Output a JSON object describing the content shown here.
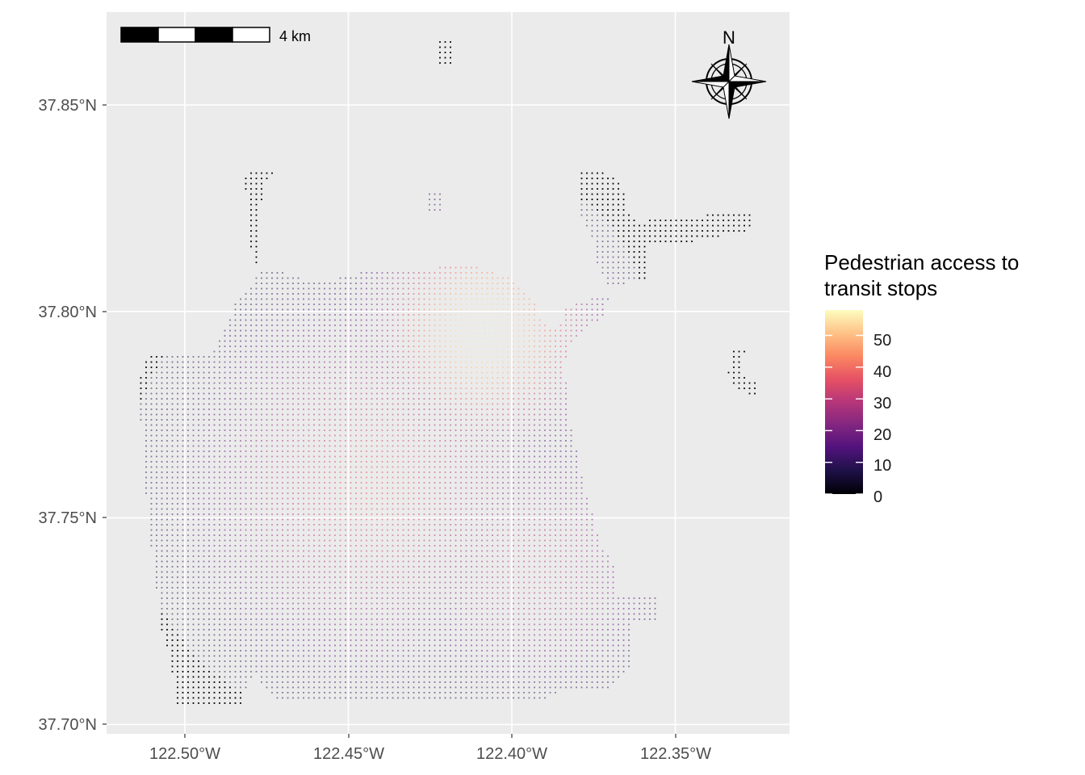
{
  "map": {
    "panel_background": "#ebebeb",
    "grid_color": "#ffffff",
    "point_color": "#000000"
  },
  "axes": {
    "x_ticks": [
      "122.50°W",
      "122.45°W",
      "122.40°W",
      "122.35°W"
    ],
    "y_ticks": [
      "37.85°N",
      "37.80°N",
      "37.75°N",
      "37.70°N"
    ]
  },
  "scale_bar": {
    "label": "4 km"
  },
  "north_arrow": {
    "label": "N",
    "icon": "compass-rose-icon"
  },
  "legend": {
    "title_line1": "Pedestrian access to",
    "title_line2": "transit stops",
    "breaks": [
      "0",
      "10",
      "20",
      "30",
      "40",
      "50"
    ],
    "range": [
      0,
      58
    ],
    "palette": "magma",
    "colors": [
      "#000004",
      "#1d1147",
      "#51127c",
      "#822681",
      "#b63679",
      "#e65164",
      "#fb8861",
      "#fec287",
      "#fcfdbf"
    ]
  },
  "chart_data": {
    "type": "scatter",
    "title": "",
    "xlabel": "",
    "ylabel": "",
    "xlim": [
      -122.52,
      -122.31
    ],
    "ylim": [
      37.695,
      37.87
    ],
    "fill_variable": "Pedestrian access to transit stops",
    "fill_range": [
      0,
      58
    ],
    "grid": true,
    "legend_position": "right"
  }
}
